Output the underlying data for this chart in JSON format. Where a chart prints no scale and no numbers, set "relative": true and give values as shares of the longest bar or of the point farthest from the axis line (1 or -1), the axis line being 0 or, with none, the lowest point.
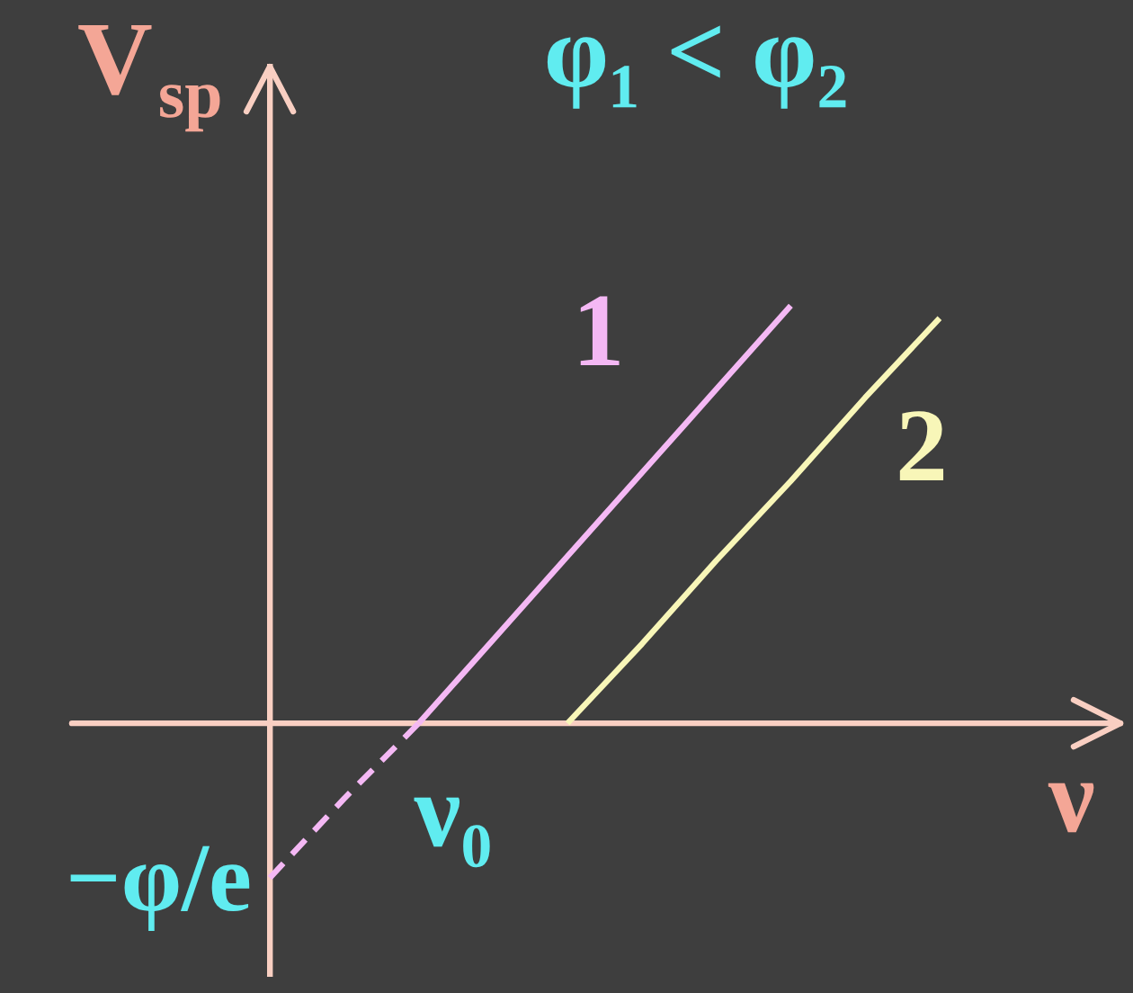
{
  "chart_data": {
    "type": "line",
    "title": "φ₁ < φ₂",
    "xlabel": "ν",
    "ylabel": "V$_{sp}$",
    "relative": true,
    "line_style": "solid",
    "categories": [
      null,
      null,
      null,
      null,
      null,
      null,
      null,
      null,
      null,
      null
    ],
    "series": [
      {
        "name": "1",
        "color": "#f4b8f4",
        "values": [
          null,
          null,
          0,
          0.2,
          0.4,
          0.6,
          0.8,
          1,
          null,
          null
        ]
      },
      {
        "name": "2",
        "color": "#f8f6b8",
        "values": [
          null,
          null,
          null,
          null,
          0,
          0.19,
          0.39,
          0.58,
          0.78,
          0.97
        ]
      },
      {
        "color": "#f4b8f4",
        "line_style": "dashed",
        "values": [
          -0.37,
          -0.18,
          0,
          null,
          null,
          null,
          null,
          null,
          null,
          null
        ]
      }
    ],
    "ref_lines": [
      {
        "axis": "y",
        "value": 0,
        "color": "#f9cfc2"
      }
    ],
    "annotations": [
      "−φ/e",
      "ν₀"
    ]
  }
}
